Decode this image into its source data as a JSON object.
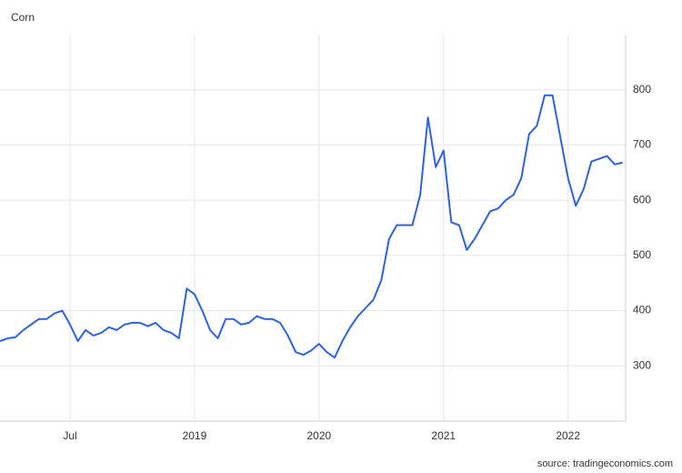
{
  "chart_data": {
    "type": "line",
    "title": "Corn",
    "source": "source: tradingeconomics.com",
    "categories": [
      null,
      null,
      null,
      null,
      null,
      null,
      null,
      null,
      null,
      "Jul",
      null,
      null,
      null,
      null,
      null,
      null,
      null,
      null,
      null,
      null,
      null,
      null,
      null,
      null,
      null,
      "2019",
      null,
      null,
      null,
      null,
      null,
      null,
      null,
      null,
      null,
      null,
      null,
      null,
      null,
      null,
      null,
      "2020",
      null,
      null,
      null,
      null,
      null,
      null,
      null,
      null,
      null,
      null,
      null,
      null,
      null,
      null,
      null,
      "2021",
      null,
      null,
      null,
      null,
      null,
      null,
      null,
      null,
      null,
      null,
      null,
      null,
      null,
      null,
      null,
      "2022",
      null,
      null,
      null,
      null,
      null,
      null,
      null
    ],
    "values": [
      345,
      350,
      352,
      365,
      375,
      385,
      385,
      395,
      400,
      375,
      345,
      365,
      355,
      360,
      370,
      365,
      375,
      378,
      378,
      372,
      378,
      365,
      360,
      350,
      440,
      430,
      400,
      365,
      350,
      385,
      385,
      375,
      378,
      390,
      385,
      385,
      378,
      355,
      325,
      320,
      328,
      340,
      325,
      315,
      345,
      370,
      390,
      405,
      420,
      455,
      530,
      555,
      555,
      555,
      610,
      750,
      660,
      690,
      560,
      555,
      510,
      530,
      555,
      580,
      585,
      600,
      610,
      640,
      720,
      735,
      790,
      790,
      715,
      640,
      590,
      620,
      670,
      675,
      680,
      665,
      668
    ],
    "color": "#2f62dd",
    "ylim": [
      200,
      900
    ],
    "yticks": [
      300,
      400,
      500,
      600,
      700,
      800
    ],
    "grid": true
  }
}
